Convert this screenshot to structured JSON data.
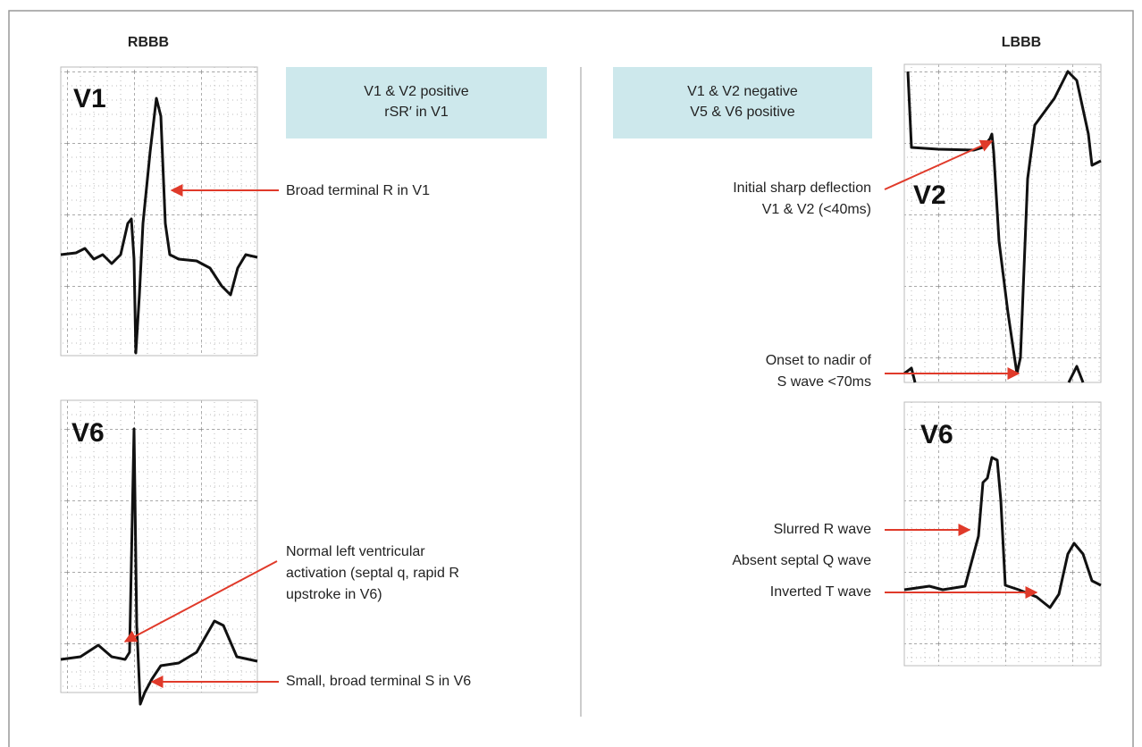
{
  "left": {
    "title": "RBBB",
    "info": [
      "V1 & V2 positive",
      "rSR′ in V1"
    ],
    "panels": [
      {
        "lead": "V1"
      },
      {
        "lead": "V6"
      }
    ],
    "annotations": [
      {
        "lines": [
          "Broad terminal R in V1"
        ]
      },
      {
        "lines": [
          "Normal left ventricular",
          "activation (septal q, rapid R",
          "upstroke in V6)"
        ]
      },
      {
        "lines": [
          "Small, broad terminal S in V6"
        ]
      }
    ]
  },
  "right": {
    "title": "LBBB",
    "info": [
      "V1 & V2 negative",
      "V5 & V6 positive"
    ],
    "panels": [
      {
        "lead": "V2"
      },
      {
        "lead": "V6"
      }
    ],
    "annotations": [
      {
        "lines": [
          "Initial sharp deflection",
          "V1 & V2 (<40ms)"
        ]
      },
      {
        "lines": [
          "Onset to nadir of",
          "S wave <70ms"
        ]
      },
      {
        "lines": [
          "Slurred R wave"
        ]
      },
      {
        "lines": [
          "Absent septal Q wave"
        ]
      },
      {
        "lines": [
          "Inverted T wave"
        ]
      }
    ]
  }
}
